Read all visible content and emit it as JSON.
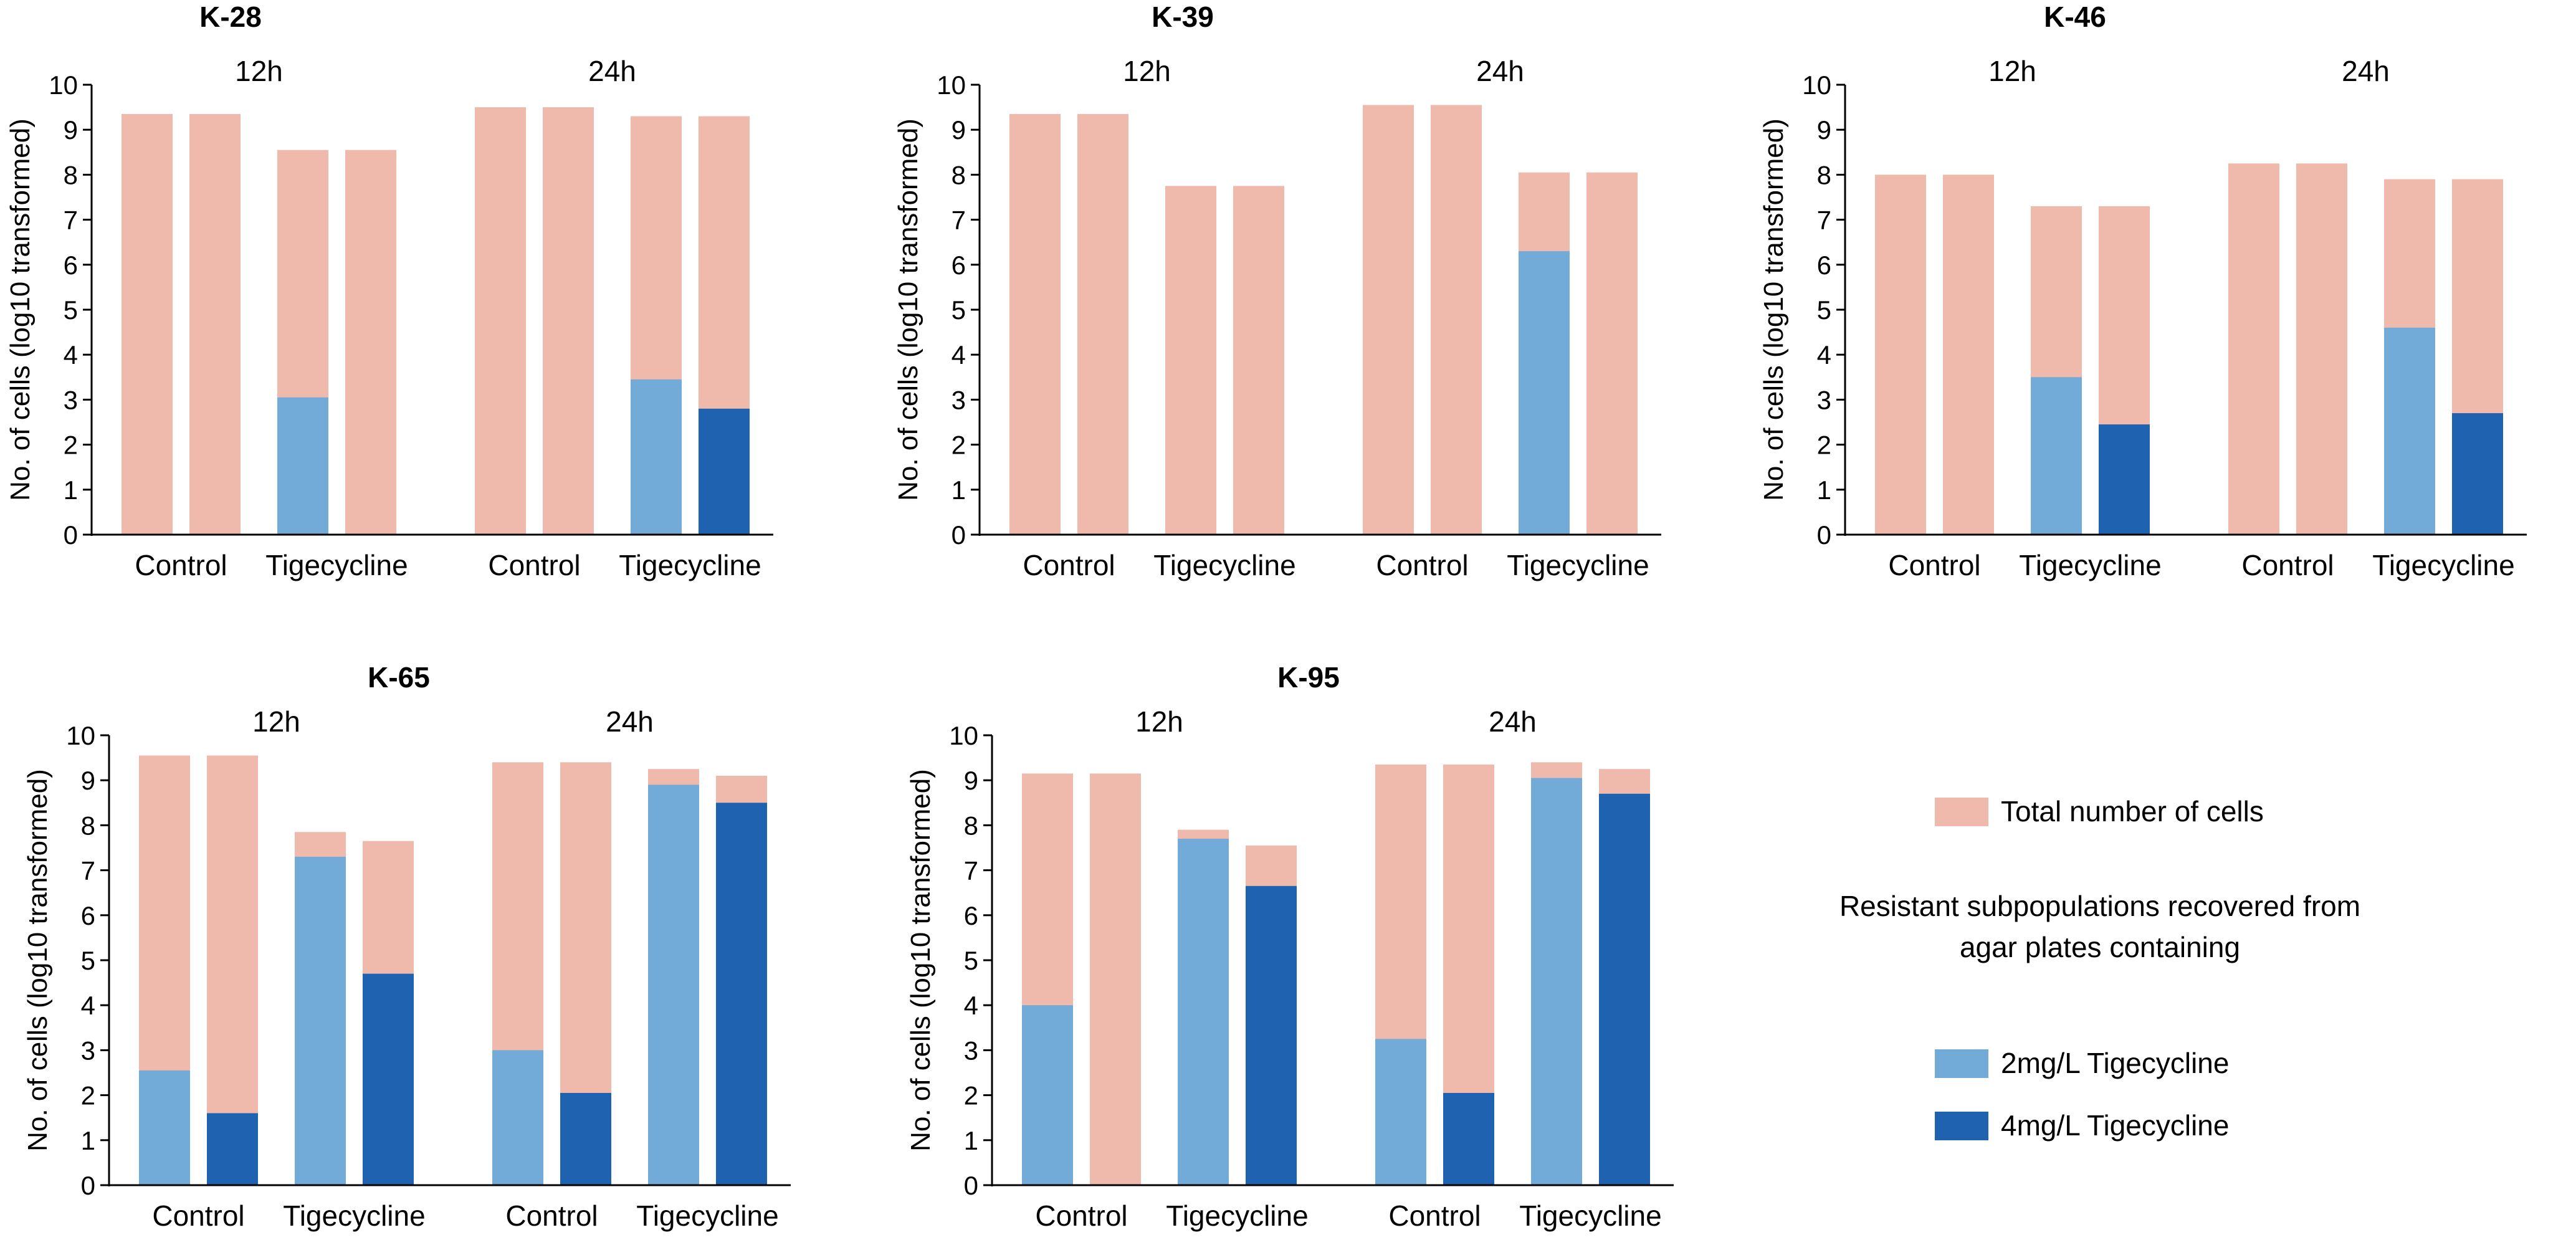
{
  "colors": {
    "total": "#efb9ac",
    "resistant_2": "#72aad8",
    "resistant_4": "#1f62b0",
    "axis": "#000000"
  },
  "legend": {
    "total_label": "Total number of cells",
    "heading_line1": "Resistant subpopulations recovered from",
    "heading_line2": "agar plates containing",
    "label_2": "2mg/L Tigecycline",
    "label_4": "4mg/L Tigecycline"
  },
  "chart_data": [
    {
      "type": "bar",
      "title": "K-28",
      "ylabel": "No. of cells (log10 transformed)",
      "ylim": [
        0,
        10
      ],
      "time_labels": [
        "12h",
        "24h"
      ],
      "group_labels": [
        "Control",
        "Tigecycline",
        "Control",
        "Tigecycline"
      ],
      "bars": [
        {
          "time": "12h",
          "group": "Control",
          "total": 9.35,
          "resistant": null,
          "resistant_level": null
        },
        {
          "time": "12h",
          "group": "Control",
          "total": 9.35,
          "resistant": null,
          "resistant_level": null
        },
        {
          "time": "12h",
          "group": "Tigecycline",
          "total": 8.55,
          "resistant": 3.05,
          "resistant_level": "2mg/L"
        },
        {
          "time": "12h",
          "group": "Tigecycline",
          "total": 8.55,
          "resistant": null,
          "resistant_level": null
        },
        {
          "time": "24h",
          "group": "Control",
          "total": 9.5,
          "resistant": null,
          "resistant_level": null
        },
        {
          "time": "24h",
          "group": "Control",
          "total": 9.5,
          "resistant": null,
          "resistant_level": null
        },
        {
          "time": "24h",
          "group": "Tigecycline",
          "total": 9.3,
          "resistant": 3.45,
          "resistant_level": "2mg/L"
        },
        {
          "time": "24h",
          "group": "Tigecycline",
          "total": 9.3,
          "resistant": 2.8,
          "resistant_level": "4mg/L"
        }
      ]
    },
    {
      "type": "bar",
      "title": "K-39",
      "ylabel": "No. of cells (log10 transformed)",
      "ylim": [
        0,
        10
      ],
      "time_labels": [
        "12h",
        "24h"
      ],
      "group_labels": [
        "Control",
        "Tigecycline",
        "Control",
        "Tigecycline"
      ],
      "bars": [
        {
          "time": "12h",
          "group": "Control",
          "total": 9.35,
          "resistant": null,
          "resistant_level": null
        },
        {
          "time": "12h",
          "group": "Control",
          "total": 9.35,
          "resistant": null,
          "resistant_level": null
        },
        {
          "time": "12h",
          "group": "Tigecycline",
          "total": 7.75,
          "resistant": null,
          "resistant_level": null
        },
        {
          "time": "12h",
          "group": "Tigecycline",
          "total": 7.75,
          "resistant": null,
          "resistant_level": null
        },
        {
          "time": "24h",
          "group": "Control",
          "total": 9.55,
          "resistant": null,
          "resistant_level": null
        },
        {
          "time": "24h",
          "group": "Control",
          "total": 9.55,
          "resistant": null,
          "resistant_level": null
        },
        {
          "time": "24h",
          "group": "Tigecycline",
          "total": 8.05,
          "resistant": 6.3,
          "resistant_level": "2mg/L"
        },
        {
          "time": "24h",
          "group": "Tigecycline",
          "total": 8.05,
          "resistant": null,
          "resistant_level": null
        }
      ]
    },
    {
      "type": "bar",
      "title": "K-46",
      "ylabel": "No. of cells (log10 transformed)",
      "ylim": [
        0,
        10
      ],
      "time_labels": [
        "12h",
        "24h"
      ],
      "group_labels": [
        "Control",
        "Tigecycline",
        "Control",
        "Tigecycline"
      ],
      "bars": [
        {
          "time": "12h",
          "group": "Control",
          "total": 8.0,
          "resistant": null,
          "resistant_level": null
        },
        {
          "time": "12h",
          "group": "Control",
          "total": 8.0,
          "resistant": null,
          "resistant_level": null
        },
        {
          "time": "12h",
          "group": "Tigecycline",
          "total": 7.3,
          "resistant": 3.5,
          "resistant_level": "2mg/L"
        },
        {
          "time": "12h",
          "group": "Tigecycline",
          "total": 7.3,
          "resistant": 2.45,
          "resistant_level": "4mg/L"
        },
        {
          "time": "24h",
          "group": "Control",
          "total": 8.25,
          "resistant": null,
          "resistant_level": null
        },
        {
          "time": "24h",
          "group": "Control",
          "total": 8.25,
          "resistant": null,
          "resistant_level": null
        },
        {
          "time": "24h",
          "group": "Tigecycline",
          "total": 7.9,
          "resistant": 4.6,
          "resistant_level": "2mg/L"
        },
        {
          "time": "24h",
          "group": "Tigecycline",
          "total": 7.9,
          "resistant": 2.7,
          "resistant_level": "4mg/L"
        }
      ]
    },
    {
      "type": "bar",
      "title": "K-65",
      "ylabel": "No. of cells (log10 transformed)",
      "ylim": [
        0,
        10
      ],
      "time_labels": [
        "12h",
        "24h"
      ],
      "group_labels": [
        "Control",
        "Tigecycline",
        "Control",
        "Tigecycline"
      ],
      "bars": [
        {
          "time": "12h",
          "group": "Control",
          "total": 9.55,
          "resistant": 2.55,
          "resistant_level": "2mg/L"
        },
        {
          "time": "12h",
          "group": "Control",
          "total": 9.55,
          "resistant": 1.6,
          "resistant_level": "4mg/L"
        },
        {
          "time": "12h",
          "group": "Tigecycline",
          "total": 7.85,
          "resistant": 7.3,
          "resistant_level": "2mg/L"
        },
        {
          "time": "12h",
          "group": "Tigecycline",
          "total": 7.65,
          "resistant": 4.7,
          "resistant_level": "4mg/L"
        },
        {
          "time": "24h",
          "group": "Control",
          "total": 9.4,
          "resistant": 3.0,
          "resistant_level": "2mg/L"
        },
        {
          "time": "24h",
          "group": "Control",
          "total": 9.4,
          "resistant": 2.05,
          "resistant_level": "4mg/L"
        },
        {
          "time": "24h",
          "group": "Tigecycline",
          "total": 9.25,
          "resistant": 8.9,
          "resistant_level": "2mg/L"
        },
        {
          "time": "24h",
          "group": "Tigecycline",
          "total": 9.1,
          "resistant": 8.5,
          "resistant_level": "4mg/L"
        }
      ]
    },
    {
      "type": "bar",
      "title": "K-95",
      "ylabel": "No. of cells (log10 transformed)",
      "ylim": [
        0,
        10
      ],
      "time_labels": [
        "12h",
        "24h"
      ],
      "group_labels": [
        "Control",
        "Tigecycline",
        "Control",
        "Tigecycline"
      ],
      "bars": [
        {
          "time": "12h",
          "group": "Control",
          "total": 9.15,
          "resistant": 4.0,
          "resistant_level": "2mg/L"
        },
        {
          "time": "12h",
          "group": "Control",
          "total": 9.15,
          "resistant": null,
          "resistant_level": null
        },
        {
          "time": "12h",
          "group": "Tigecycline",
          "total": 7.9,
          "resistant": 7.7,
          "resistant_level": "2mg/L"
        },
        {
          "time": "12h",
          "group": "Tigecycline",
          "total": 7.55,
          "resistant": 6.65,
          "resistant_level": "4mg/L"
        },
        {
          "time": "24h",
          "group": "Control",
          "total": 9.35,
          "resistant": 3.25,
          "resistant_level": "2mg/L"
        },
        {
          "time": "24h",
          "group": "Control",
          "total": 9.35,
          "resistant": 2.05,
          "resistant_level": "4mg/L"
        },
        {
          "time": "24h",
          "group": "Tigecycline",
          "total": 9.4,
          "resistant": 9.05,
          "resistant_level": "2mg/L"
        },
        {
          "time": "24h",
          "group": "Tigecycline",
          "total": 9.25,
          "resistant": 8.7,
          "resistant_level": "4mg/L"
        }
      ]
    }
  ]
}
